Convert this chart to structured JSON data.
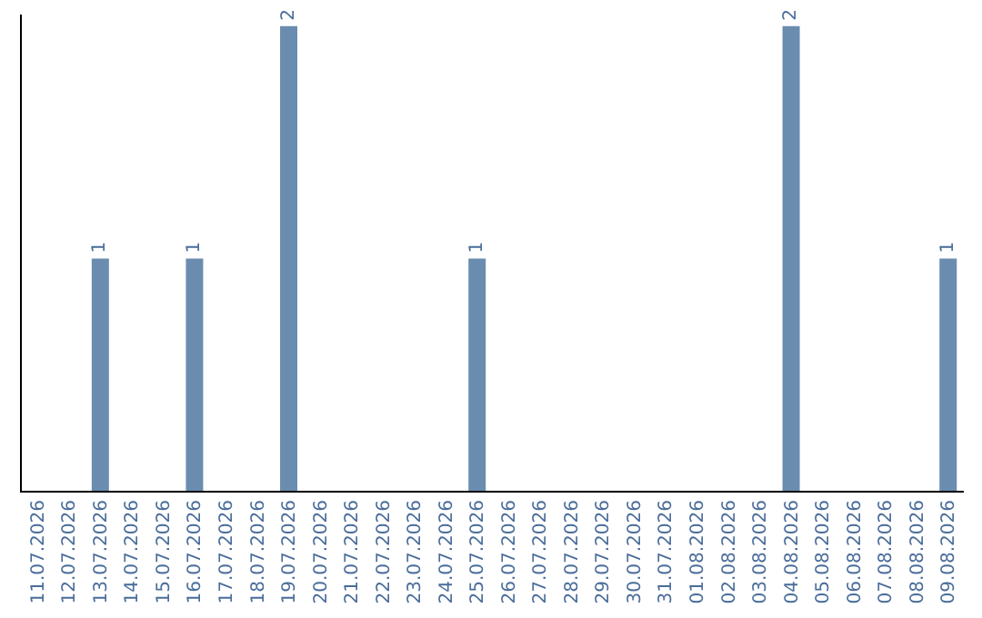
{
  "chart_data": {
    "type": "bar",
    "categories": [
      "11.07.2026",
      "12.07.2026",
      "13.07.2026",
      "14.07.2026",
      "15.07.2026",
      "16.07.2026",
      "17.07.2026",
      "18.07.2026",
      "19.07.2026",
      "20.07.2026",
      "21.07.2026",
      "22.07.2026",
      "23.07.2026",
      "24.07.2026",
      "25.07.2026",
      "26.07.2026",
      "27.07.2026",
      "28.07.2026",
      "29.07.2026",
      "30.07.2026",
      "31.07.2026",
      "01.08.2026",
      "02.08.2026",
      "03.08.2026",
      "04.08.2026",
      "05.08.2026",
      "06.08.2026",
      "07.08.2026",
      "08.08.2026",
      "09.08.2026"
    ],
    "values": [
      0,
      0,
      1,
      0,
      0,
      1,
      0,
      0,
      2,
      0,
      0,
      0,
      0,
      0,
      1,
      0,
      0,
      0,
      0,
      0,
      0,
      0,
      0,
      0,
      2,
      0,
      0,
      0,
      0,
      1
    ],
    "value_labels": [
      null,
      null,
      "1",
      null,
      null,
      "1",
      null,
      null,
      "2",
      null,
      null,
      null,
      null,
      null,
      "1",
      null,
      null,
      null,
      null,
      null,
      null,
      null,
      null,
      null,
      "2",
      null,
      null,
      null,
      null,
      "1"
    ],
    "color": "#6a8caf",
    "ylim": [
      0,
      2.05
    ],
    "tick_labels": "x",
    "legend": false
  }
}
